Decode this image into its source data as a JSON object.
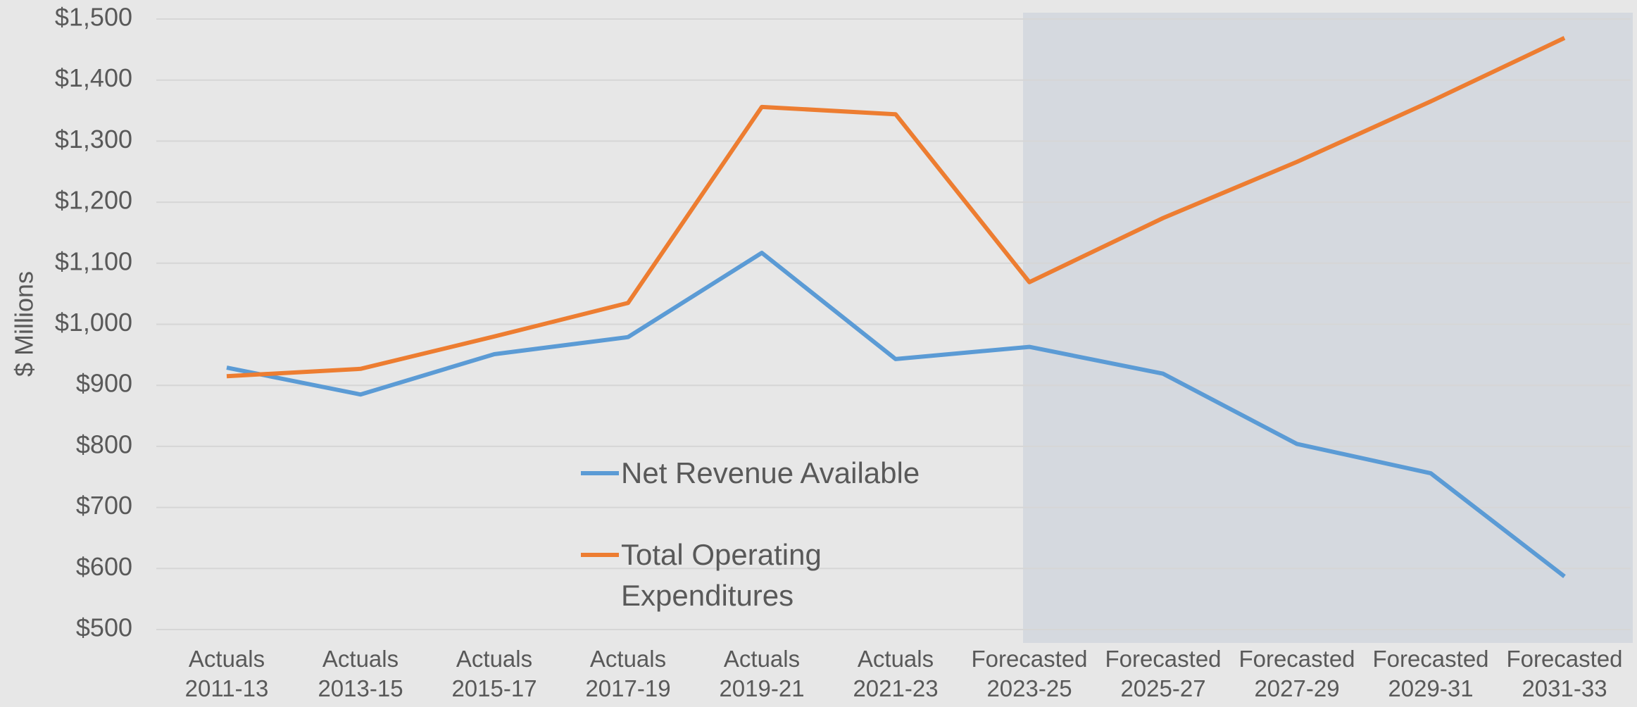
{
  "chart_data": {
    "type": "line",
    "y_label": "$ Millions",
    "categories": [
      "Actuals 2011-13",
      "Actuals 2013-15",
      "Actuals 2015-17",
      "Actuals 2017-19",
      "Actuals 2019-21",
      "Actuals 2021-23",
      "Forecasted 2023-25",
      "Forecasted 2025-27",
      "Forecasted 2027-29",
      "Forecasted 2029-31",
      "Forecasted 2031-33"
    ],
    "series": [
      {
        "name": "Net Revenue Available",
        "color": "#5b9bd5",
        "values": [
          929,
          885,
          951,
          979,
          1117,
          943,
          963,
          919,
          804,
          756,
          587
        ]
      },
      {
        "name": "Total Operating Expenditures",
        "color": "#ed7d31",
        "values": [
          915,
          927,
          980,
          1035,
          1356,
          1344,
          1069,
          1174,
          1266,
          1365,
          1469
        ]
      }
    ],
    "ylim": [
      500,
      1500
    ],
    "yticks": [
      {
        "value": 500,
        "label": "$500"
      },
      {
        "value": 600,
        "label": "$600"
      },
      {
        "value": 700,
        "label": "$700"
      },
      {
        "value": 800,
        "label": "$800"
      },
      {
        "value": 900,
        "label": "$900"
      },
      {
        "value": 1000,
        "label": "$1,000"
      },
      {
        "value": 1100,
        "label": "$1,100"
      },
      {
        "value": 1200,
        "label": "$1,200"
      },
      {
        "value": 1300,
        "label": "$1,300"
      },
      {
        "value": 1400,
        "label": "$1,400"
      },
      {
        "value": 1500,
        "label": "$1,500"
      }
    ],
    "grid": true
  }
}
